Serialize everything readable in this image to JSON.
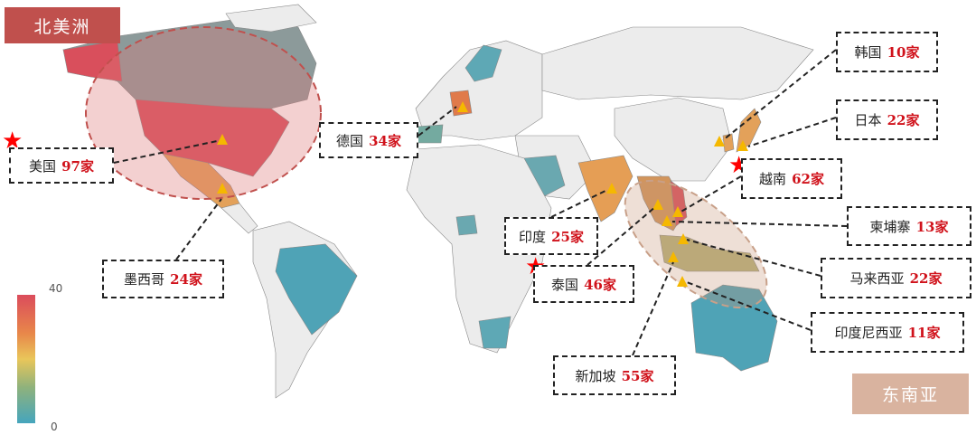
{
  "regions": {
    "north_america": {
      "label": "北美洲",
      "color": "#c0504d"
    },
    "southeast_asia": {
      "label": "东南亚",
      "color": "#d9b39f"
    }
  },
  "legend": {
    "max": "40",
    "min": "0",
    "colors": [
      "#db4c5c",
      "#e8874a",
      "#e9c65a",
      "#8fb27c",
      "#45a5bd"
    ]
  },
  "unit": "家",
  "countries": [
    {
      "name": "美国",
      "count": "97",
      "starred": true
    },
    {
      "name": "德国",
      "count": "34",
      "starred": false
    },
    {
      "name": "韩国",
      "count": "10",
      "starred": false
    },
    {
      "name": "日本",
      "count": "22",
      "starred": false
    },
    {
      "name": "越南",
      "count": "62",
      "starred": true
    },
    {
      "name": "柬埔寨",
      "count": "13",
      "starred": false
    },
    {
      "name": "马来西亚",
      "count": "22",
      "starred": false
    },
    {
      "name": "印度尼西亚",
      "count": "11",
      "starred": false
    },
    {
      "name": "印度",
      "count": "25",
      "starred": false
    },
    {
      "name": "泰国",
      "count": "46",
      "starred": true
    },
    {
      "name": "新加坡",
      "count": "55",
      "starred": false
    },
    {
      "name": "墨西哥",
      "count": "24",
      "starred": false
    }
  ],
  "marker_color": "#f5b800"
}
